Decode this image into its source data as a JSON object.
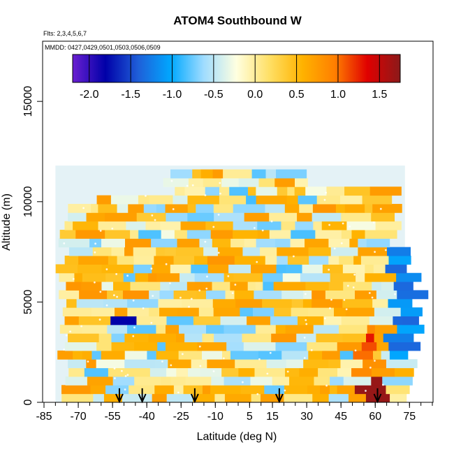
{
  "chart_data": {
    "type": "heatmap",
    "title": "ATOM4 Southbound W",
    "flights_note": "Flts: 2,3,4,5,6,7",
    "dates_note": "MMDD: 0427,0429,0501,0503,0506,0509",
    "xlabel": "Latitude (deg N)",
    "ylabel": "Altitude (m)",
    "xlim": [
      -85,
      85
    ],
    "ylim": [
      0,
      18000
    ],
    "x_ticks": [
      -85,
      -70,
      -55,
      -40,
      -25,
      -10,
      5,
      15,
      30,
      45,
      60,
      75
    ],
    "y_ticks": [
      0,
      5000,
      10000,
      15000
    ],
    "colorbar": {
      "range": [
        -2.2,
        1.75
      ],
      "ticks": [
        -2.0,
        -1.5,
        -1.0,
        -0.5,
        0.0,
        0.5,
        1.0,
        1.5
      ],
      "tick_labels": [
        "-2.0",
        "-1.5",
        "-1.0",
        "-0.5",
        "0.0",
        "0.5",
        "1.0",
        "1.5"
      ],
      "colors": [
        "#6a1fd1",
        "#0000a8",
        "#1f5fd8",
        "#00a8ff",
        "#9fdcff",
        "#ffffe0",
        "#ffe066",
        "#ffb300",
        "#ff7f00",
        "#e00000",
        "#8b1a1a"
      ]
    },
    "profile_arrows_lat": [
      -52,
      -42,
      -19,
      18,
      61
    ],
    "data_extent": {
      "lat_range": [
        -80,
        73
      ],
      "alt_range": [
        0,
        12500
      ]
    }
  }
}
